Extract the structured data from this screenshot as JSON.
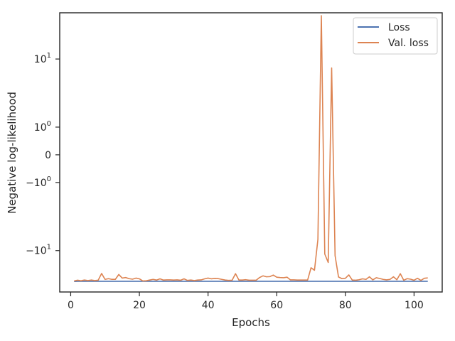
{
  "chart_data": {
    "type": "line",
    "title": "",
    "xlabel": "Epochs",
    "ylabel": "Negative log-likelihood",
    "yscale": "symlog",
    "xlim": [
      -3.2,
      108.2
    ],
    "ylim": [
      -30,
      34
    ],
    "xticks": [
      0,
      20,
      40,
      60,
      80,
      100
    ],
    "xtick_labels": [
      "0",
      "20",
      "40",
      "60",
      "80",
      "100"
    ],
    "yticks": [
      {
        "value": 10,
        "base": "10",
        "exp": "1",
        "neg": false
      },
      {
        "value": 1,
        "base": "10",
        "exp": "0",
        "neg": false
      },
      {
        "value": 0,
        "plain": "0"
      },
      {
        "value": -1,
        "base": "10",
        "exp": "0",
        "neg": true
      },
      {
        "value": -10,
        "base": "10",
        "exp": "1",
        "neg": true
      }
    ],
    "grid": false,
    "legend_position": "top-right",
    "series": [
      {
        "name": "Loss",
        "color": "#4c72b0",
        "x": [
          1,
          2,
          3,
          4,
          5,
          6,
          7,
          8,
          9,
          10,
          11,
          12,
          13,
          14,
          15,
          16,
          17,
          18,
          19,
          20,
          21,
          22,
          23,
          24,
          25,
          26,
          27,
          28,
          29,
          30,
          31,
          32,
          33,
          34,
          35,
          36,
          37,
          38,
          39,
          40,
          41,
          42,
          43,
          44,
          45,
          46,
          47,
          48,
          49,
          50,
          51,
          52,
          53,
          54,
          55,
          56,
          57,
          58,
          59,
          60,
          61,
          62,
          63,
          64,
          65,
          66,
          67,
          68,
          69,
          70,
          71,
          72,
          73,
          74,
          75,
          76,
          77,
          78,
          79,
          80,
          81,
          82,
          83,
          84,
          85,
          86,
          87,
          88,
          89,
          90,
          91,
          92,
          93,
          94,
          95,
          96,
          97,
          98,
          99,
          100,
          101,
          102,
          103,
          104
        ],
        "y": [
          -22.8,
          -22.7,
          -22.7,
          -22.7,
          -22.7,
          -22.7,
          -22.7,
          -22.7,
          -22.7,
          -22.7,
          -22.7,
          -22.7,
          -22.7,
          -22.7,
          -22.7,
          -22.7,
          -22.7,
          -22.7,
          -22.7,
          -22.7,
          -22.7,
          -22.7,
          -22.7,
          -22.7,
          -22.7,
          -22.7,
          -22.7,
          -22.7,
          -22.7,
          -22.7,
          -22.7,
          -22.7,
          -22.7,
          -22.7,
          -22.7,
          -22.7,
          -22.7,
          -22.7,
          -22.7,
          -22.7,
          -22.7,
          -22.7,
          -22.7,
          -22.7,
          -22.7,
          -22.7,
          -22.7,
          -22.7,
          -22.7,
          -22.7,
          -22.7,
          -22.7,
          -22.7,
          -22.7,
          -22.7,
          -22.7,
          -22.7,
          -22.7,
          -22.7,
          -22.7,
          -22.7,
          -22.7,
          -22.7,
          -22.7,
          -22.7,
          -22.7,
          -22.7,
          -22.7,
          -22.7,
          -22.7,
          -22.7,
          -22.7,
          -22.7,
          -22.7,
          -22.7,
          -22.7,
          -22.7,
          -22.7,
          -22.7,
          -22.7,
          -22.7,
          -22.7,
          -22.7,
          -22.7,
          -22.7,
          -22.7,
          -22.7,
          -22.7,
          -22.7,
          -22.7,
          -22.7,
          -22.7,
          -22.7,
          -22.7,
          -22.7,
          -22.7,
          -22.7,
          -22.7,
          -22.7,
          -22.7,
          -22.7,
          -22.7,
          -22.7,
          -22.7
        ]
      },
      {
        "name": "Val. loss",
        "color": "#dd8452",
        "x": [
          1,
          2,
          3,
          4,
          5,
          6,
          7,
          8,
          9,
          10,
          11,
          12,
          13,
          14,
          15,
          16,
          17,
          18,
          19,
          20,
          21,
          22,
          23,
          24,
          25,
          26,
          27,
          28,
          29,
          30,
          31,
          32,
          33,
          34,
          35,
          36,
          37,
          38,
          39,
          40,
          41,
          42,
          43,
          44,
          45,
          46,
          47,
          48,
          49,
          50,
          51,
          52,
          53,
          54,
          55,
          56,
          57,
          58,
          59,
          60,
          61,
          62,
          63,
          64,
          65,
          66,
          67,
          68,
          69,
          70,
          71,
          72,
          73,
          74,
          75,
          76,
          77,
          78,
          79,
          80,
          81,
          82,
          83,
          84,
          85,
          86,
          87,
          88,
          89,
          90,
          91,
          92,
          93,
          94,
          95,
          96,
          97,
          98,
          99,
          100,
          101,
          102,
          103,
          104
        ],
        "y": [
          -22.5,
          -22.1,
          -22.4,
          -22.0,
          -22.3,
          -22.0,
          -22.3,
          -22.1,
          -18.5,
          -21.6,
          -21.2,
          -21.6,
          -21.6,
          -19.0,
          -20.9,
          -20.6,
          -21.2,
          -21.5,
          -20.9,
          -21.3,
          -22.5,
          -22.4,
          -22.0,
          -21.6,
          -22.0,
          -21.3,
          -22.0,
          -21.9,
          -21.9,
          -22.0,
          -21.9,
          -22.1,
          -21.3,
          -22.2,
          -22.0,
          -22.3,
          -22.0,
          -21.9,
          -21.3,
          -20.9,
          -21.3,
          -21.1,
          -21.2,
          -21.6,
          -22.0,
          -22.2,
          -22.1,
          -18.6,
          -22.0,
          -22.0,
          -21.8,
          -22.1,
          -22.1,
          -22.1,
          -20.6,
          -19.7,
          -20.2,
          -20.1,
          -19.3,
          -20.4,
          -20.6,
          -20.7,
          -20.4,
          -21.9,
          -21.9,
          -22.0,
          -22.0,
          -22.0,
          -22.0,
          -15.9,
          -17.0,
          -7.3,
          31.6,
          -11.0,
          -13.8,
          7.8,
          -11.5,
          -20.3,
          -21.2,
          -21.0,
          -19.2,
          -22.0,
          -22.1,
          -21.8,
          -21.3,
          -21.6,
          -20.2,
          -21.9,
          -20.7,
          -21.1,
          -21.6,
          -21.9,
          -21.6,
          -20.2,
          -21.8,
          -18.6,
          -22.1,
          -21.2,
          -21.5,
          -22.1,
          -21.0,
          -22.2,
          -21.0,
          -20.8
        ]
      }
    ]
  }
}
